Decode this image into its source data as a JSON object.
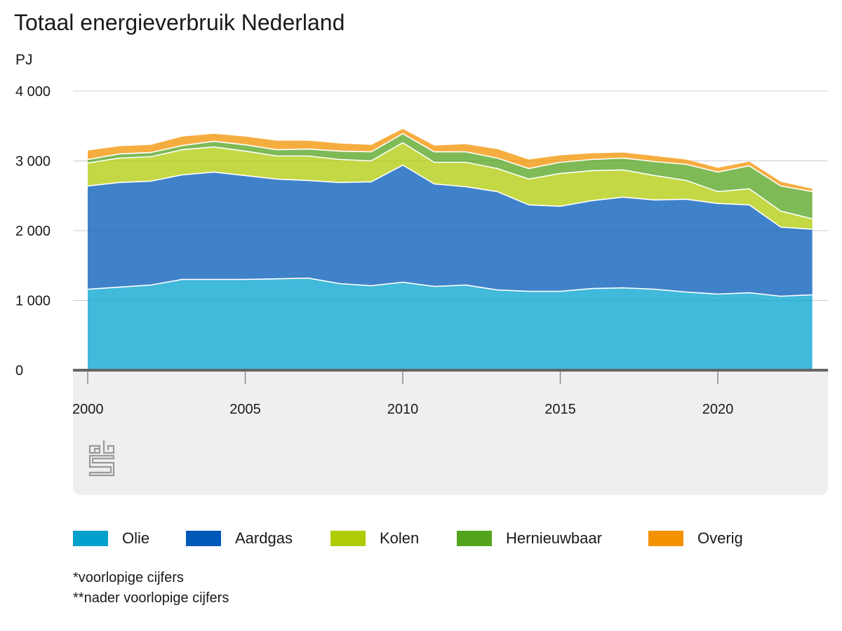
{
  "chart_data": {
    "type": "area",
    "stacked": true,
    "title": "Totaal energieverbruik Nederland",
    "ylabel": "PJ",
    "xlabel": "",
    "ylim": [
      0,
      4000
    ],
    "yticks": [
      0,
      1000,
      2000,
      3000,
      4000
    ],
    "ytick_labels": [
      "0",
      "1 000",
      "2 000",
      "3 000",
      "4 000"
    ],
    "xticks": [
      2000,
      2005,
      2010,
      2015,
      2020
    ],
    "xtick_labels": [
      "2000",
      "2005",
      "2010",
      "2015",
      "2020"
    ],
    "grid": "horizontal",
    "legend_position": "bottom",
    "x": [
      2000,
      2001,
      2002,
      2003,
      2004,
      2005,
      2006,
      2007,
      2008,
      2009,
      2010,
      2011,
      2012,
      2013,
      2014,
      2015,
      2016,
      2017,
      2018,
      2019,
      2020,
      2021,
      2022,
      2023
    ],
    "series": [
      {
        "name": "Olie",
        "color": "#00a1cd",
        "values": [
          1160,
          1190,
          1220,
          1300,
          1300,
          1300,
          1310,
          1320,
          1240,
          1210,
          1260,
          1200,
          1220,
          1150,
          1130,
          1130,
          1170,
          1180,
          1160,
          1120,
          1090,
          1110,
          1060,
          1080
        ]
      },
      {
        "name": "Aardgas",
        "color": "#0058b8",
        "values": [
          1480,
          1500,
          1490,
          1500,
          1540,
          1490,
          1430,
          1400,
          1450,
          1490,
          1680,
          1470,
          1410,
          1410,
          1240,
          1220,
          1260,
          1300,
          1280,
          1330,
          1300,
          1260,
          990,
          940
        ]
      },
      {
        "name": "Kolen",
        "color": "#afcb05",
        "values": [
          330,
          350,
          350,
          360,
          360,
          350,
          330,
          350,
          330,
          300,
          320,
          310,
          350,
          330,
          370,
          470,
          430,
          390,
          350,
          270,
          170,
          230,
          230,
          150
        ]
      },
      {
        "name": "Hernieuwbaar",
        "color": "#53a31d",
        "values": [
          50,
          60,
          60,
          60,
          80,
          90,
          90,
          100,
          120,
          130,
          130,
          150,
          150,
          150,
          150,
          160,
          160,
          170,
          200,
          230,
          280,
          330,
          360,
          390
        ]
      },
      {
        "name": "Overig",
        "color": "#f39200",
        "values": [
          130,
          110,
          110,
          130,
          110,
          120,
          130,
          120,
          110,
          100,
          70,
          90,
          110,
          130,
          130,
          100,
          90,
          80,
          80,
          70,
          60,
          60,
          60,
          40
        ]
      }
    ]
  },
  "logo": {
    "name": "cbs"
  },
  "footnotes": [
    "*voorlopige cijfers",
    "**nader voorlopige cijfers"
  ]
}
